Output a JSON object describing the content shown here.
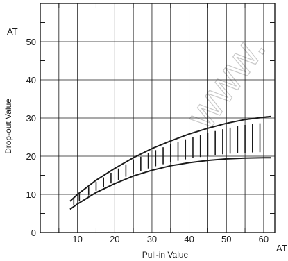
{
  "chart_data": {
    "type": "area",
    "title": "",
    "xlabel": "Pull-in Value",
    "ylabel": "Drop-out Value",
    "x_unit": "AT",
    "y_unit": "AT",
    "xlim": [
      0,
      63
    ],
    "ylim": [
      0,
      60
    ],
    "x_ticks": [
      10,
      20,
      30,
      40,
      50,
      60
    ],
    "y_ticks": [
      0,
      10,
      20,
      30,
      40,
      50
    ],
    "grid": true,
    "watermark": "www.",
    "series": [
      {
        "role": "upper-bound",
        "x": [
          8,
          10,
          15,
          20,
          25,
          30,
          35,
          40,
          45,
          50,
          55,
          60,
          62
        ],
        "y": [
          8.2,
          10.0,
          13.7,
          16.8,
          19.6,
          22.0,
          24.0,
          25.8,
          27.3,
          28.6,
          29.6,
          30.2,
          30.4
        ]
      },
      {
        "role": "lower-bound",
        "x": [
          8,
          10,
          15,
          20,
          25,
          30,
          35,
          40,
          45,
          50,
          55,
          60,
          62
        ],
        "y": [
          6.1,
          7.5,
          10.5,
          12.8,
          14.8,
          16.3,
          17.5,
          18.3,
          18.9,
          19.3,
          19.5,
          19.6,
          19.6
        ]
      }
    ],
    "hatch_x": [
      9,
      10.5,
      13,
      15,
      17,
      19,
      21,
      23,
      25,
      27,
      29,
      31,
      33,
      35,
      37,
      39,
      41,
      43,
      45,
      47,
      49,
      51,
      53,
      55,
      57,
      59
    ]
  }
}
